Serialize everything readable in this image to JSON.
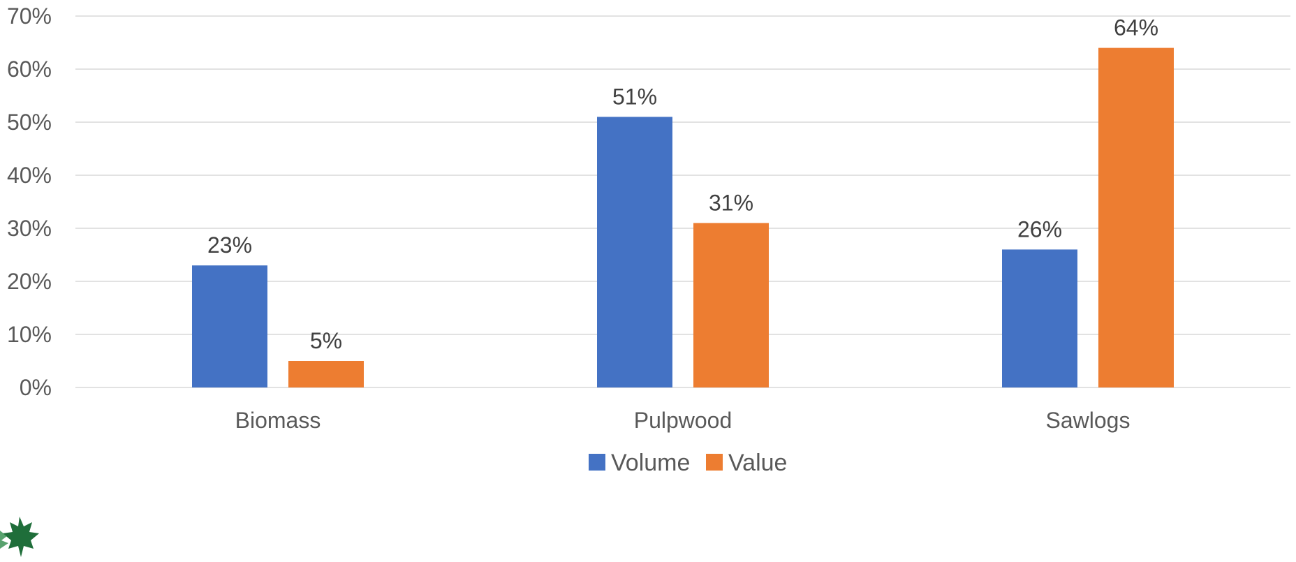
{
  "chart_data": {
    "type": "bar",
    "title": "",
    "xlabel": "",
    "ylabel": "",
    "categories": [
      "Biomass",
      "Pulpwood",
      "Sawlogs"
    ],
    "series": [
      {
        "name": "Volume",
        "color": "#4472C4",
        "values": [
          23,
          51,
          26
        ],
        "labels": [
          "23%",
          "51%",
          "26%"
        ]
      },
      {
        "name": "Value",
        "color": "#ED7D31",
        "values": [
          5,
          31,
          64
        ],
        "labels": [
          "5%",
          "31%",
          "64%"
        ]
      }
    ],
    "ylim": [
      0,
      70
    ],
    "yticks": [
      0,
      10,
      20,
      30,
      40,
      50,
      60,
      70
    ],
    "ytick_labels": [
      "0%",
      "10%",
      "20%",
      "30%",
      "40%",
      "50%",
      "60%",
      "70%"
    ],
    "grid": true,
    "legend_position": "bottom"
  },
  "logo": {
    "icon": "maple-leaf-icon",
    "color": "#1f6e3a"
  }
}
